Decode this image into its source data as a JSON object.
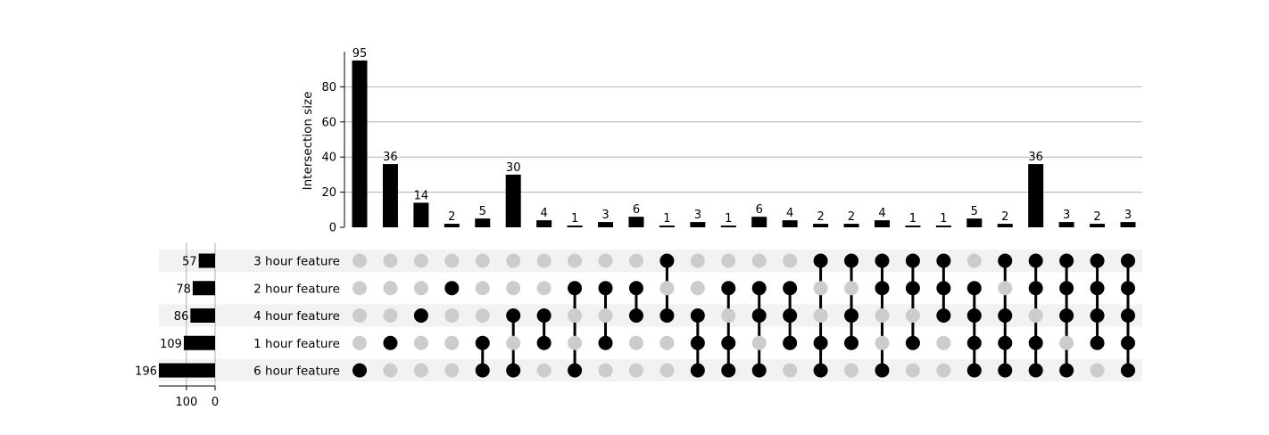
{
  "chart_data": {
    "type": "upset",
    "ylabel": "Intersection size",
    "yticks": [
      0,
      20,
      40,
      60,
      80
    ],
    "ylim": [
      0,
      100
    ],
    "grid": true,
    "colors": {
      "filled": "#000000",
      "empty": "#cccccc",
      "shade": "#f2f2f2",
      "grid": "#b0b0b0"
    },
    "sets": [
      {
        "name": "3 hour feature",
        "size": 57
      },
      {
        "name": "2 hour feature",
        "size": 78
      },
      {
        "name": "4 hour feature",
        "size": 86
      },
      {
        "name": "1 hour feature",
        "size": 109
      },
      {
        "name": "6 hour feature",
        "size": 196
      }
    ],
    "set_size_ticks": [
      100,
      0
    ],
    "set_size_lim": [
      0,
      196
    ],
    "intersections": [
      {
        "value": 95,
        "members": [
          "6 hour feature"
        ]
      },
      {
        "value": 36,
        "members": [
          "1 hour feature"
        ]
      },
      {
        "value": 14,
        "members": [
          "4 hour feature"
        ]
      },
      {
        "value": 2,
        "members": [
          "2 hour feature"
        ]
      },
      {
        "value": 5,
        "members": [
          "1 hour feature",
          "6 hour feature"
        ]
      },
      {
        "value": 30,
        "members": [
          "4 hour feature",
          "6 hour feature"
        ]
      },
      {
        "value": 4,
        "members": [
          "4 hour feature",
          "1 hour feature"
        ]
      },
      {
        "value": 1,
        "members": [
          "2 hour feature",
          "6 hour feature"
        ]
      },
      {
        "value": 3,
        "members": [
          "2 hour feature",
          "1 hour feature"
        ]
      },
      {
        "value": 6,
        "members": [
          "2 hour feature",
          "4 hour feature"
        ]
      },
      {
        "value": 1,
        "members": [
          "3 hour feature",
          "4 hour feature"
        ]
      },
      {
        "value": 3,
        "members": [
          "4 hour feature",
          "1 hour feature",
          "6 hour feature"
        ]
      },
      {
        "value": 1,
        "members": [
          "2 hour feature",
          "1 hour feature",
          "6 hour feature"
        ]
      },
      {
        "value": 6,
        "members": [
          "2 hour feature",
          "4 hour feature",
          "6 hour feature"
        ]
      },
      {
        "value": 4,
        "members": [
          "2 hour feature",
          "4 hour feature",
          "1 hour feature"
        ]
      },
      {
        "value": 2,
        "members": [
          "3 hour feature",
          "1 hour feature",
          "6 hour feature"
        ]
      },
      {
        "value": 2,
        "members": [
          "3 hour feature",
          "4 hour feature",
          "1 hour feature"
        ]
      },
      {
        "value": 4,
        "members": [
          "3 hour feature",
          "2 hour feature",
          "6 hour feature"
        ]
      },
      {
        "value": 1,
        "members": [
          "3 hour feature",
          "2 hour feature",
          "1 hour feature"
        ]
      },
      {
        "value": 1,
        "members": [
          "3 hour feature",
          "2 hour feature",
          "4 hour feature"
        ]
      },
      {
        "value": 5,
        "members": [
          "2 hour feature",
          "4 hour feature",
          "1 hour feature",
          "6 hour feature"
        ]
      },
      {
        "value": 2,
        "members": [
          "3 hour feature",
          "4 hour feature",
          "1 hour feature",
          "6 hour feature"
        ]
      },
      {
        "value": 36,
        "members": [
          "3 hour feature",
          "2 hour feature",
          "1 hour feature",
          "6 hour feature"
        ]
      },
      {
        "value": 3,
        "members": [
          "3 hour feature",
          "2 hour feature",
          "4 hour feature",
          "6 hour feature"
        ]
      },
      {
        "value": 2,
        "members": [
          "3 hour feature",
          "2 hour feature",
          "4 hour feature",
          "1 hour feature"
        ]
      },
      {
        "value": 3,
        "members": [
          "3 hour feature",
          "2 hour feature",
          "4 hour feature",
          "1 hour feature",
          "6 hour feature"
        ]
      }
    ]
  }
}
